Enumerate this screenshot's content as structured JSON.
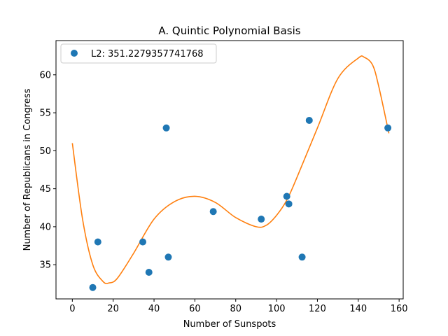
{
  "chart_data": {
    "type": "scatter",
    "title": "A. Quintic Polynomial Basis",
    "xlabel": "Number of Sunspots",
    "ylabel": "Number of Republicans in Congress",
    "xlim": [
      -8,
      162
    ],
    "ylim": [
      30.5,
      64.5
    ],
    "xticks": [
      0,
      20,
      40,
      60,
      80,
      100,
      120,
      140,
      160
    ],
    "yticks": [
      35,
      40,
      45,
      50,
      55,
      60
    ],
    "grid": false,
    "legend": {
      "placement": "top-left",
      "entries": [
        "L2: 351.2279357741768"
      ]
    },
    "series": [
      {
        "name": "L2: 351.2279357741768",
        "kind": "scatter",
        "color": "#1f77b4",
        "x": [
          10,
          12.5,
          34.5,
          37.5,
          46,
          47,
          69,
          92.5,
          105,
          106,
          112.5,
          116,
          154.5
        ],
        "y": [
          32,
          38,
          38,
          34,
          53,
          36,
          42,
          41,
          44,
          43,
          36,
          54,
          53
        ]
      },
      {
        "kind": "line",
        "color": "#ff7f0e",
        "x": [
          0,
          5,
          10,
          15,
          18,
          22,
          30,
          40,
          50,
          60,
          70,
          80,
          90,
          95,
          100,
          105,
          110,
          120,
          130,
          140,
          143,
          147,
          150,
          155
        ],
        "y": [
          51,
          41,
          35,
          32.8,
          32.6,
          33.2,
          36.5,
          41,
          43.3,
          44,
          43.2,
          41.2,
          40,
          40.2,
          41.5,
          43.5,
          46.5,
          53,
          59.5,
          62.2,
          62.3,
          61.3,
          58.5,
          52.3
        ]
      }
    ]
  }
}
